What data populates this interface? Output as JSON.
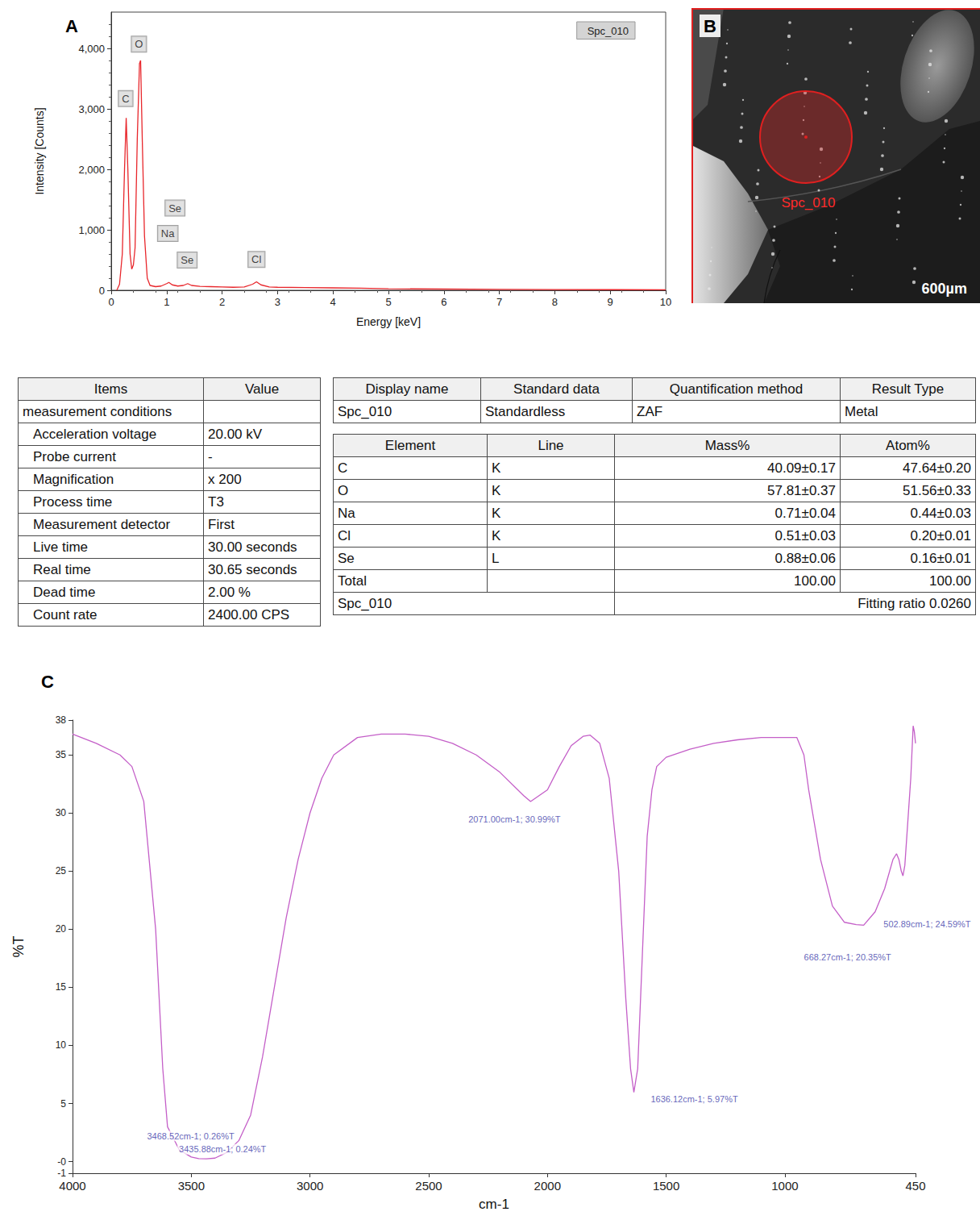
{
  "chart_data": [
    {
      "type": "line",
      "title": "A",
      "xlabel": "Energy [keV]",
      "ylabel": "Intensity [Counts]",
      "xlim": [
        0,
        10
      ],
      "xticks": [
        0,
        1,
        2,
        3,
        4,
        5,
        6,
        7,
        8,
        9,
        10
      ],
      "ylim": [
        0,
        4600
      ],
      "yticks": [
        0,
        {
          "value": 1000,
          "label": "1,000"
        },
        {
          "value": 2000,
          "label": "2,000"
        },
        {
          "value": 3000,
          "label": "3,000"
        },
        {
          "value": 4000,
          "label": "4,000"
        }
      ],
      "grid": false,
      "legend": "upper right",
      "x": [
        0.1,
        0.15,
        0.2,
        0.24,
        0.27,
        0.3,
        0.34,
        0.37,
        0.4,
        0.43,
        0.47,
        0.51,
        0.53,
        0.56,
        0.6,
        0.65,
        0.7,
        0.8,
        0.9,
        1.0,
        1.04,
        1.1,
        1.2,
        1.3,
        1.38,
        1.45,
        1.6,
        1.8,
        2.0,
        2.2,
        2.4,
        2.55,
        2.62,
        2.7,
        2.85,
        3.0,
        3.5,
        4.0,
        4.5,
        5.0,
        6.0,
        7.0,
        8.0,
        9.0,
        10.0
      ],
      "series": [
        {
          "name": "Spc_010",
          "color": "#e8262b",
          "values": [
            0,
            100,
            600,
            2000,
            2850,
            2000,
            600,
            350,
            420,
            700,
            2500,
            3750,
            3800,
            2500,
            900,
            200,
            80,
            60,
            70,
            110,
            130,
            90,
            70,
            80,
            110,
            80,
            65,
            60,
            55,
            50,
            55,
            100,
            140,
            90,
            55,
            50,
            45,
            40,
            35,
            25,
            20,
            15,
            12,
            10,
            8
          ]
        }
      ],
      "annotations": [
        {
          "text": "C",
          "x": 0.26,
          "y": 3170
        },
        {
          "text": "O",
          "x": 0.5,
          "y": 4070
        },
        {
          "text": "Se",
          "x": 1.15,
          "y": 1360
        },
        {
          "text": "Na",
          "x": 1.02,
          "y": 940
        },
        {
          "text": "Se",
          "x": 1.37,
          "y": 500
        },
        {
          "text": "Cl",
          "x": 2.62,
          "y": 510
        }
      ]
    },
    {
      "type": "line",
      "title": "C",
      "xlabel": "cm-1",
      "ylabel": "%T",
      "xlim": [
        4000,
        450
      ],
      "xticks": [
        4000,
        3500,
        3000,
        2500,
        2000,
        1500,
        1000,
        450
      ],
      "ylim": [
        -1,
        38
      ],
      "yticks": [
        -1,
        {
          "value": 0,
          "label": "-0"
        },
        5,
        10,
        15,
        20,
        25,
        30,
        35,
        38
      ],
      "grid": false,
      "x": [
        4000,
        3900,
        3800,
        3750,
        3700,
        3650,
        3620,
        3600,
        3550,
        3500,
        3468.52,
        3435.88,
        3400,
        3350,
        3300,
        3250,
        3200,
        3150,
        3100,
        3050,
        3000,
        2950,
        2900,
        2800,
        2700,
        2600,
        2500,
        2400,
        2300,
        2200,
        2100,
        2071,
        2000,
        1950,
        1900,
        1850,
        1820,
        1780,
        1740,
        1700,
        1670,
        1650,
        1636.12,
        1620,
        1600,
        1580,
        1560,
        1540,
        1500,
        1400,
        1300,
        1200,
        1100,
        1000,
        950,
        920,
        900,
        850,
        800,
        750,
        700,
        668.27,
        620,
        580,
        545,
        530,
        520,
        510,
        502.89,
        495,
        480,
        470,
        460,
        455,
        450
      ],
      "series": [
        {
          "color": "#c45fc8",
          "values": [
            36.8,
            36,
            35,
            34,
            31,
            20,
            8,
            3,
            1.0,
            0.4,
            0.26,
            0.24,
            0.3,
            0.8,
            1.8,
            4,
            9,
            15,
            21,
            26,
            30,
            33,
            35,
            36.5,
            36.8,
            36.8,
            36.6,
            36,
            35,
            33.5,
            31.5,
            30.99,
            32,
            34,
            35.8,
            36.6,
            36.7,
            36,
            33,
            25,
            14,
            8,
            5.97,
            8,
            18,
            28,
            32,
            34,
            34.8,
            35.5,
            36,
            36.3,
            36.5,
            36.5,
            36.5,
            35,
            32,
            26,
            22,
            20.6,
            20.4,
            20.35,
            21.5,
            23.5,
            26,
            26.5,
            26,
            25,
            24.59,
            25.5,
            30,
            33,
            37.5,
            37,
            36
          ]
        }
      ],
      "annotations": [
        {
          "text": "3468.52cm-1; 0.26%T",
          "x": 3468.52,
          "y": 0.26
        },
        {
          "text": "3435.88cm-1; 0.24%T",
          "x": 3435.88,
          "y": 0.24
        },
        {
          "text": "2071.00cm-1; 30.99%T",
          "x": 2071.0,
          "y": 30.99
        },
        {
          "text": "1636.12cm-1; 5.97%T",
          "x": 1636.12,
          "y": 5.97
        },
        {
          "text": "668.27cm-1; 20.35%T",
          "x": 668.27,
          "y": 20.35
        },
        {
          "text": "502.89cm-1; 24.59%T",
          "x": 502.89,
          "y": 24.59
        }
      ]
    }
  ],
  "image": {
    "title": "B",
    "marker_label": "Spc_010",
    "scale_bar": "600µm"
  },
  "tables": {
    "conditions": {
      "header": [
        "Items",
        "Value"
      ],
      "rows": [
        [
          "measurement conditions",
          null
        ],
        [
          "Acceleration voltage",
          "20.00 kV"
        ],
        [
          "Probe current",
          "-"
        ],
        [
          "Magnification",
          "x 200"
        ],
        [
          "Process time",
          "T3"
        ],
        [
          "Measurement detector",
          "First"
        ],
        [
          "Live time",
          "30.00 seconds"
        ],
        [
          "Real time",
          "30.65 seconds"
        ],
        [
          "Dead time",
          "2.00 %"
        ],
        [
          "Count rate",
          "2400.00 CPS"
        ]
      ]
    },
    "method": {
      "header": [
        "Display name",
        "Standard data",
        "Quantification method",
        "Result Type"
      ],
      "rows": [
        [
          "Spc_010",
          "Standardless",
          "ZAF",
          "Metal"
        ]
      ]
    },
    "results": {
      "header": [
        "Element",
        "Line",
        "Mass%",
        "Atom%"
      ],
      "rows": [
        [
          "C",
          "K",
          "40.09±0.17",
          "47.64±0.20"
        ],
        [
          "O",
          "K",
          "57.81±0.37",
          "51.56±0.33"
        ],
        [
          "Na",
          "K",
          "0.71±0.04",
          "0.44±0.03"
        ],
        [
          "Cl",
          "K",
          "0.51±0.03",
          "0.20±0.01"
        ],
        [
          "Se",
          "L",
          "0.88±0.06",
          "0.16±0.01"
        ],
        [
          "Total",
          null,
          "100.00",
          "100.00"
        ]
      ],
      "footer": [
        "Spc_010",
        "Fitting ratio 0.0260"
      ]
    }
  }
}
